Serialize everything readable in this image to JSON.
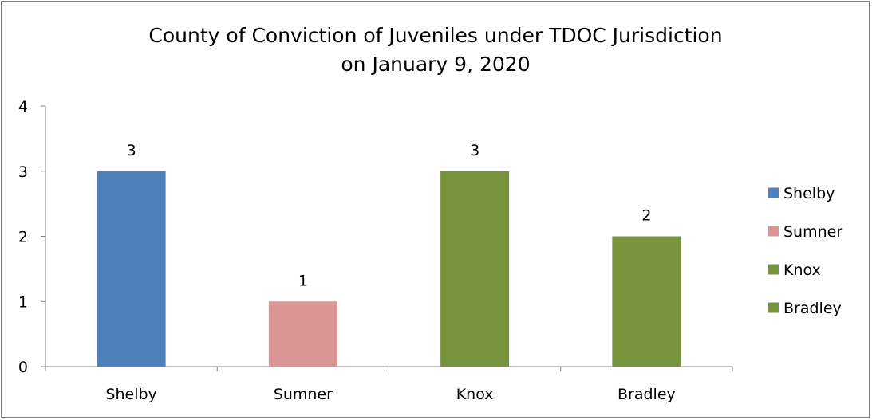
{
  "chart_data": {
    "type": "bar",
    "title_lines": [
      "County of Conviction of Juveniles under TDOC Jurisdiction",
      "on January 9, 2020"
    ],
    "categories": [
      "Shelby",
      "Sumner",
      "Knox",
      "Bradley"
    ],
    "values": [
      3,
      1,
      3,
      2
    ],
    "colors": [
      "#4f81bd",
      "#d99694",
      "#77933c",
      "#77933c"
    ],
    "data_labels": [
      "3",
      "1",
      "3",
      "2"
    ],
    "ylim": [
      0,
      4
    ],
    "yticks": [
      "0",
      "1",
      "2",
      "3",
      "4"
    ],
    "grid": false,
    "legend": {
      "placement": "right",
      "entries": [
        {
          "label": "Shelby",
          "color": "#4f81bd"
        },
        {
          "label": "Sumner",
          "color": "#d99694"
        },
        {
          "label": "Knox",
          "color": "#77933c"
        },
        {
          "label": "Bradley",
          "color": "#77933c"
        }
      ]
    }
  }
}
